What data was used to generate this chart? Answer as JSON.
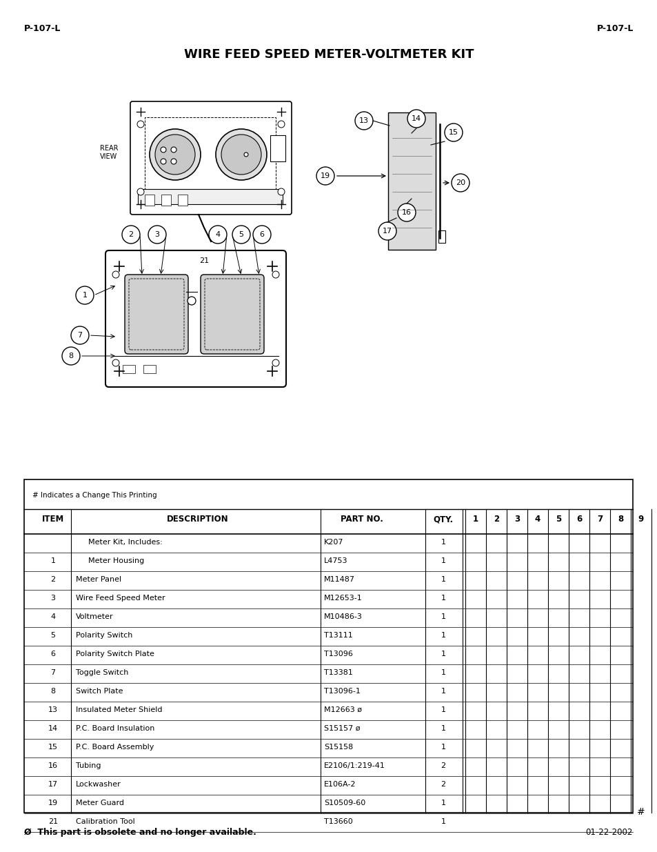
{
  "page_header_left": "P-107-L",
  "page_header_right": "P-107-L",
  "title": "WIRE FEED SPEED METER-VOLTMETER KIT",
  "table_note": "# Indicates a Change This Printing",
  "table_headers": [
    "ITEM",
    "DESCRIPTION",
    "PART NO.",
    "QTY.",
    "1",
    "2",
    "3",
    "4",
    "5",
    "6",
    "7",
    "8",
    "9"
  ],
  "table_rows": [
    [
      "",
      "Meter Kit, Includes:",
      "K207",
      "1"
    ],
    [
      "1",
      "Meter Housing",
      "L4753",
      "1"
    ],
    [
      "2",
      "Meter Panel",
      "M11487",
      "1"
    ],
    [
      "3",
      "Wire Feed Speed Meter",
      "M12653-1",
      "1"
    ],
    [
      "4",
      "Voltmeter",
      "M10486-3",
      "1"
    ],
    [
      "5",
      "Polarity Switch",
      "T13111",
      "1"
    ],
    [
      "6",
      "Polarity Switch Plate",
      "T13096",
      "1"
    ],
    [
      "7",
      "Toggle Switch",
      "T13381",
      "1"
    ],
    [
      "8",
      "Switch Plate",
      "T13096-1",
      "1"
    ],
    [
      "13",
      "Insulated Meter Shield",
      "M12663 ø",
      "1"
    ],
    [
      "14",
      "P.C. Board Insulation",
      "S15157 ø",
      "1"
    ],
    [
      "15",
      "P.C. Board Assembly",
      "S15158",
      "1"
    ],
    [
      "16",
      "Tubing",
      "E2106/1:219-41",
      "2"
    ],
    [
      "17",
      "Lockwasher",
      "E106A-2",
      "2"
    ],
    [
      "19",
      "Meter Guard",
      "S10509-60",
      "1"
    ],
    [
      "21",
      "Calibration Tool",
      "T13660",
      "1"
    ]
  ],
  "footer_note": "Ø  This part is obsolete and no longer available.",
  "footer_date": "01-22-2002",
  "hash_note": "#",
  "background_color": "#ffffff",
  "text_color": "#000000"
}
